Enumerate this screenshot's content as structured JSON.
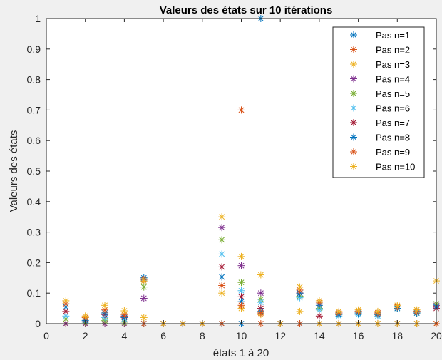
{
  "chart_data": {
    "type": "scatter",
    "title": "Valeurs des états sur 10 itérations",
    "xlabel": "états 1 à 20",
    "ylabel": "Valeurs des états",
    "xlim": [
      0,
      20
    ],
    "ylim": [
      0,
      1
    ],
    "xticks": [
      "0",
      "2",
      "4",
      "6",
      "8",
      "10",
      "12",
      "14",
      "16",
      "18",
      "20"
    ],
    "yticks": [
      "0",
      "0.1",
      "0.2",
      "0.3",
      "0.4",
      "0.5",
      "0.6",
      "0.7",
      "0.8",
      "0.9",
      "1"
    ],
    "grid": false,
    "legend_position": "top-right",
    "marker": "asterisk",
    "x": [
      1,
      2,
      3,
      4,
      5,
      6,
      7,
      8,
      9,
      10,
      11,
      12,
      13,
      14,
      15,
      16,
      17,
      18,
      19,
      20
    ],
    "series": [
      {
        "name": "Pas n=1",
        "color": "#0072BD",
        "values": [
          0,
          0,
          0,
          0,
          0,
          0,
          0,
          0,
          0,
          0,
          1,
          0,
          0,
          0,
          0,
          0,
          0,
          0,
          0,
          0
        ]
      },
      {
        "name": "Pas n=2",
        "color": "#D95319",
        "values": [
          0,
          0,
          0,
          0,
          0,
          0,
          0,
          0,
          0,
          0.7,
          0,
          0,
          0,
          0,
          0,
          0,
          0,
          0,
          0,
          0
        ]
      },
      {
        "name": "Pas n=3",
        "color": "#EDB120",
        "values": [
          0,
          0,
          0,
          0,
          0.02,
          0,
          0,
          0,
          0.1,
          0.05,
          0.03,
          0,
          0.04,
          0,
          0,
          0,
          0,
          0,
          0,
          0
        ]
      },
      {
        "name": "Pas n=4",
        "color": "#7E2F8E",
        "values": [
          0,
          0,
          0,
          0,
          0.083,
          0,
          0,
          0,
          0.315,
          0.19,
          0.1,
          0,
          0.1,
          0.065,
          0.035,
          0.04,
          0.035,
          0.055,
          0.04,
          0.06
        ]
      },
      {
        "name": "Pas n=5",
        "color": "#77AC30",
        "values": [
          0.015,
          0.005,
          0.01,
          0.005,
          0.12,
          0,
          0,
          0,
          0.275,
          0.135,
          0.08,
          0,
          0.09,
          0.05,
          0.03,
          0.035,
          0.03,
          0.05,
          0.035,
          0.065
        ]
      },
      {
        "name": "Pas n=6",
        "color": "#4DBEEE",
        "values": [
          0.025,
          0.01,
          0.02,
          0.015,
          0.14,
          0,
          0,
          0,
          0.228,
          0.108,
          0.07,
          0,
          0.085,
          0.045,
          0.025,
          0.03,
          0.025,
          0.05,
          0.04,
          0.055
        ]
      },
      {
        "name": "Pas n=7",
        "color": "#A2142F",
        "values": [
          0.04,
          0.015,
          0.03,
          0.025,
          0.145,
          0,
          0,
          0,
          0.186,
          0.088,
          0.05,
          0,
          0.1,
          0.025,
          0.035,
          0.04,
          0.035,
          0.055,
          0.04,
          0.05
        ]
      },
      {
        "name": "Pas n=8",
        "color": "#0072BD",
        "values": [
          0.055,
          0.01,
          0.035,
          0.02,
          0.15,
          0,
          0,
          0,
          0.153,
          0.072,
          0.04,
          0,
          0.1,
          0.06,
          0.03,
          0.035,
          0.03,
          0.05,
          0.035,
          0.055
        ]
      },
      {
        "name": "Pas n=9",
        "color": "#D95319",
        "values": [
          0.065,
          0.02,
          0.045,
          0.03,
          0.145,
          0,
          0,
          0,
          0.125,
          0.06,
          0.035,
          0,
          0.11,
          0.07,
          0.035,
          0.04,
          0.035,
          0.055,
          0.04,
          0
        ]
      },
      {
        "name": "Pas n=10",
        "color": "#EDB120",
        "values": [
          0.075,
          0.025,
          0.06,
          0.042,
          0.14,
          0,
          0,
          0,
          0.35,
          0.22,
          0.16,
          0,
          0.12,
          0.075,
          0.04,
          0.045,
          0.04,
          0.06,
          0.045,
          0.14
        ]
      }
    ]
  }
}
